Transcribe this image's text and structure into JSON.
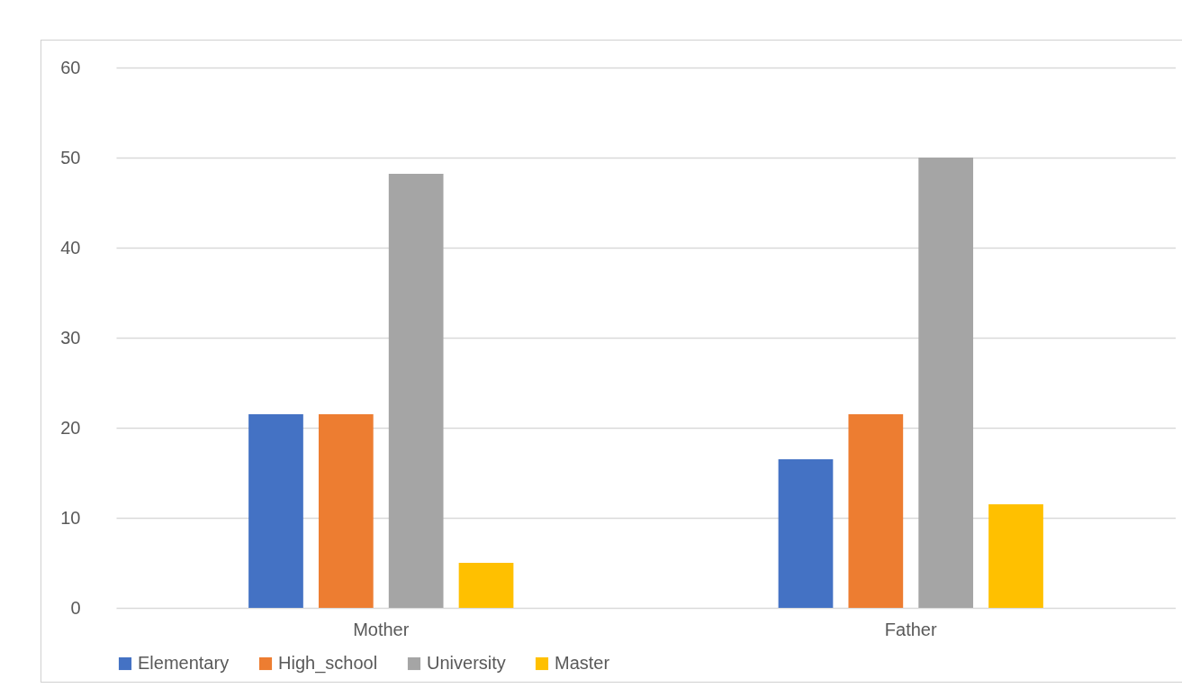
{
  "chart_data": {
    "type": "bar",
    "categories": [
      "Mother",
      "Father"
    ],
    "series": [
      {
        "name": "Elementary",
        "color": "#4472c4",
        "values": [
          21.5,
          16.5
        ]
      },
      {
        "name": "High_school",
        "color": "#ed7d31",
        "values": [
          21.5,
          21.5
        ]
      },
      {
        "name": "University",
        "color": "#a5a5a5",
        "values": [
          48.2,
          50
        ]
      },
      {
        "name": "Master",
        "color": "#ffc000",
        "values": [
          5,
          11.5
        ]
      }
    ],
    "ylim": [
      0,
      60
    ],
    "yticks": [
      0,
      10,
      20,
      30,
      40,
      50,
      60
    ],
    "grid": "y",
    "legend": "bottom"
  }
}
